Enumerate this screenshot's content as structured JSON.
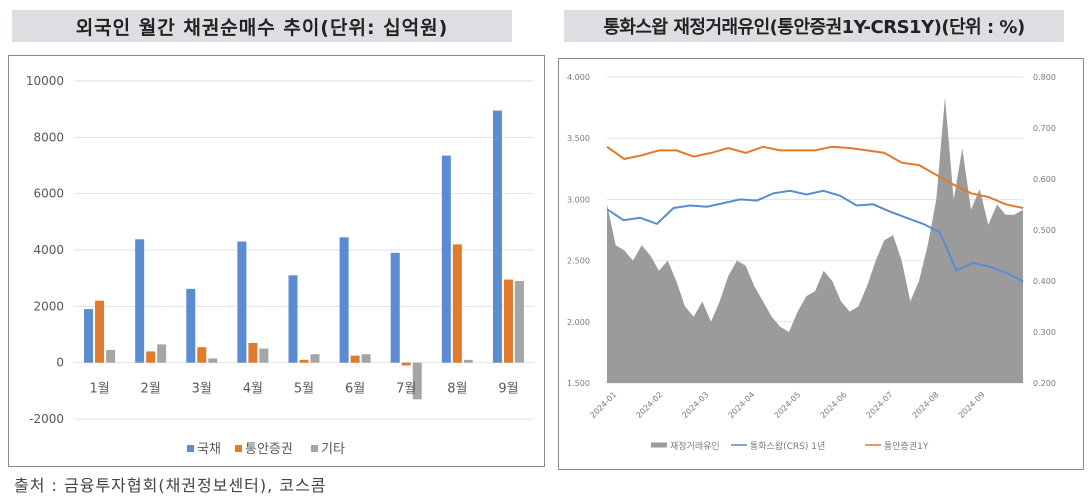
{
  "left_chart": {
    "title": "외국인 월간 채권순매수 추이(단위: 십억원)"
  },
  "right_chart": {
    "title": "통화스왑 재정거래유인(통안증권1Y-CRS1Y)(단위 : %)"
  },
  "source_note": "출처 : 금융투자협회(채권정보센터), 코스콤",
  "colors": {
    "blue": "#5b8bd0",
    "orange": "#e07b2e",
    "gray": "#a5a5a5",
    "area_gray": "#9b9b9b",
    "grid": "#e2e2e2"
  },
  "chart_data": [
    {
      "type": "bar",
      "title": "외국인 월간 채권순매수 추이(단위: 십억원)",
      "xlabel": "",
      "ylabel": "",
      "categories": [
        "1월",
        "2월",
        "3월",
        "4월",
        "5월",
        "6월",
        "7월",
        "8월",
        "9월"
      ],
      "series": [
        {
          "name": "국채",
          "color": "#5b8bd0",
          "values": [
            1900,
            4380,
            2620,
            4300,
            3100,
            4450,
            3900,
            7350,
            8950
          ]
        },
        {
          "name": "통안증권",
          "color": "#e07b2e",
          "values": [
            2200,
            400,
            550,
            700,
            100,
            250,
            -100,
            4200,
            2950
          ]
        },
        {
          "name": "기타",
          "color": "#a5a5a5",
          "values": [
            450,
            650,
            150,
            500,
            300,
            300,
            -1300,
            100,
            2900
          ]
        }
      ],
      "ylim": [
        -2000,
        10000
      ],
      "yticks": [
        "10000",
        "8000",
        "6000",
        "4000",
        "2000",
        "0",
        "-2000"
      ],
      "grid": true,
      "legend_position": "bottom"
    },
    {
      "type": "line",
      "title": "통화스왑 재정거래유인(통안증권1Y-CRS1Y)(단위 : %)",
      "x": [
        "2024-01",
        "2024-02",
        "2024-03",
        "2024-04",
        "2024-05",
        "2024-06",
        "2024-07",
        "2024-08",
        "2024-09"
      ],
      "xticks": [
        "2024-01",
        "2024-02",
        "2024-03",
        "2024-04",
        "2024-05",
        "2024-06",
        "2024-07",
        "2024-08",
        "2024-09"
      ],
      "ylim_left": [
        1.5,
        4.0
      ],
      "yticks_left": [
        "4.000",
        "3.500",
        "3.000",
        "2.500",
        "2.000",
        "1.500"
      ],
      "ylim_right": [
        0.2,
        0.8
      ],
      "yticks_right": [
        "0.800",
        "0.700",
        "0.600",
        "0.500",
        "0.400",
        "0.300",
        "0.200"
      ],
      "series": [
        {
          "name": "재정거래유인",
          "type": "area",
          "axis": "right",
          "color": "#9b9b9b",
          "values": [
            0.55,
            0.47,
            0.46,
            0.44,
            0.47,
            0.45,
            0.42,
            0.44,
            0.4,
            0.35,
            0.33,
            0.36,
            0.32,
            0.36,
            0.41,
            0.44,
            0.43,
            0.39,
            0.36,
            0.33,
            0.31,
            0.3,
            0.34,
            0.37,
            0.38,
            0.42,
            0.4,
            0.36,
            0.34,
            0.35,
            0.39,
            0.44,
            0.48,
            0.49,
            0.44,
            0.36,
            0.4,
            0.47,
            0.56,
            0.76,
            0.56,
            0.66,
            0.54,
            0.58,
            0.51,
            0.55,
            0.53,
            0.53,
            0.54
          ]
        },
        {
          "name": "통화스왑(CRS) 1년",
          "type": "line",
          "axis": "left",
          "color": "#5b8bd0",
          "values": [
            2.92,
            2.83,
            2.85,
            2.8,
            2.93,
            2.95,
            2.94,
            2.97,
            3.0,
            2.99,
            3.05,
            3.07,
            3.04,
            3.07,
            3.03,
            2.95,
            2.96,
            2.9,
            2.85,
            2.8,
            2.73,
            2.42,
            2.48,
            2.45,
            2.4,
            2.33
          ]
        },
        {
          "name": "통안증권1Y",
          "type": "line",
          "axis": "left",
          "color": "#e07b2e",
          "values": [
            3.43,
            3.33,
            3.36,
            3.4,
            3.4,
            3.35,
            3.38,
            3.42,
            3.38,
            3.43,
            3.4,
            3.4,
            3.4,
            3.43,
            3.42,
            3.4,
            3.38,
            3.3,
            3.28,
            3.2,
            3.12,
            3.05,
            3.02,
            2.96,
            2.93
          ]
        }
      ],
      "legend": [
        "재정거래유인",
        "통화스왑(CRS) 1년",
        "통안증권1Y"
      ],
      "legend_position": "bottom",
      "grid": true
    }
  ]
}
